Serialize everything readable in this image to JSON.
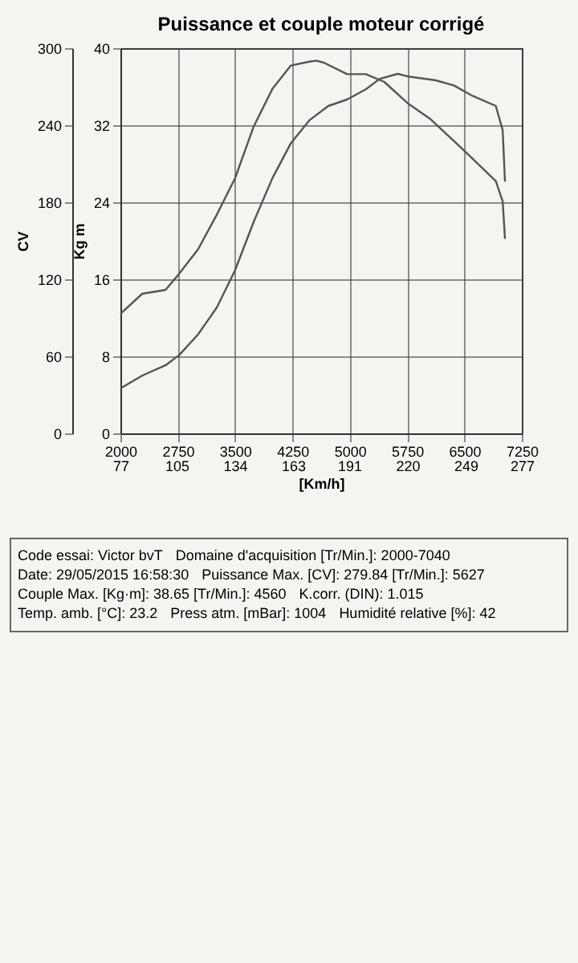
{
  "chart_data": {
    "type": "line",
    "title": "Puissance et couple moteur corrigé",
    "ylabel": "Kg m",
    "y2label": "CV",
    "x2label": "[Km/h]",
    "xlim": [
      2000,
      7250
    ],
    "xticks": [
      2000,
      2750,
      3500,
      4250,
      5000,
      5750,
      6500,
      7250
    ],
    "x2lim": [
      77,
      277
    ],
    "x2ticks": [
      77,
      105,
      134,
      163,
      191,
      220,
      249,
      277
    ],
    "ylim": [
      0,
      40
    ],
    "yticks": [
      0,
      8,
      16,
      24,
      32,
      40
    ],
    "y2lim": [
      0,
      300
    ],
    "y2ticks": [
      0,
      60,
      120,
      180,
      240,
      300
    ],
    "grid": true,
    "line_style": "solid",
    "series": [
      {
        "color": "#555555",
        "x": [
          2000,
          2286,
          2590,
          2740,
          3015,
          3260,
          3500,
          3745,
          3990,
          4230,
          4475,
          4560,
          4660,
          4965,
          5210,
          5450,
          5755,
          6060,
          6490,
          6910,
          7000,
          7030
        ],
        "values": [
          12.4,
          14.5,
          14.9,
          16.3,
          19.1,
          22.7,
          26.5,
          31.9,
          35.8,
          38.2,
          38.6,
          38.7,
          38.5,
          37.3,
          37.3,
          36.5,
          34.3,
          32.6,
          29.4,
          26.2,
          24.1,
          20.2
        ]
      },
      {
        "color": "#555555",
        "axis": "y2",
        "x": [
          2000,
          2286,
          2590,
          2770,
          3015,
          3260,
          3500,
          3745,
          3990,
          4230,
          4475,
          4720,
          4965,
          5210,
          5390,
          5627,
          5755,
          6120,
          6360,
          6600,
          6910,
          7000,
          7030
        ],
        "values": [
          35,
          45,
          53,
          61,
          77,
          98,
          127,
          165,
          199,
          226,
          244,
          255,
          260,
          268,
          276,
          280,
          278,
          275,
          271,
          263,
          255,
          236,
          196
        ]
      }
    ],
    "annotations": [
      "Code essai: Victor bvT",
      "Domaine d'acquisition [Tr/Min.]: 2000-7040",
      "Date: 29/05/2015 16:58:30",
      "Puissance Max. [CV]: 279.84 [Tr/Min.]: 5627",
      "Couple Max. [Kg·m]: 38.65 [Tr/Min.]: 4560",
      "K.corr. (DIN): 1.015",
      "Temp. amb. [°C]: 23.2",
      "Press atm. [mBar]: 1004",
      "Humidité relative [%]: 42"
    ]
  }
}
